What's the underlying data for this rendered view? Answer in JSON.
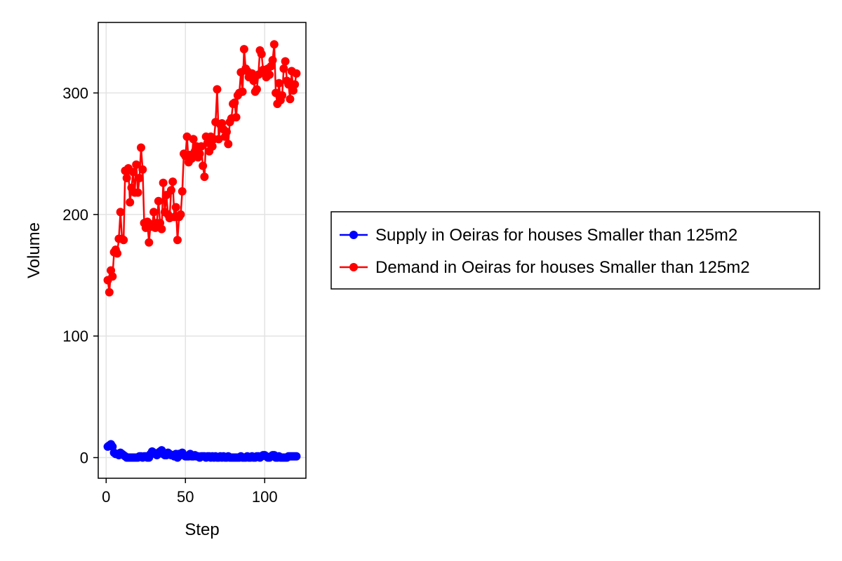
{
  "chart_data": {
    "type": "line",
    "xlabel": "Step",
    "ylabel": "Volume",
    "xlim": [
      -5,
      126
    ],
    "ylim": [
      -17,
      358
    ],
    "x_ticks": [
      0,
      50,
      100
    ],
    "y_ticks": [
      0,
      100,
      200,
      300
    ],
    "grid": true,
    "legend_placement": "right",
    "series": [
      {
        "name": "Supply in Oeiras for houses Smaller than 125m2",
        "color": "#0000ff",
        "marker": "circle",
        "x": [
          1,
          2,
          3,
          4,
          5,
          6,
          7,
          8,
          9,
          10,
          11,
          12,
          13,
          14,
          15,
          16,
          17,
          18,
          19,
          20,
          21,
          22,
          23,
          24,
          25,
          26,
          27,
          28,
          29,
          30,
          31,
          32,
          33,
          34,
          35,
          36,
          37,
          38,
          39,
          40,
          41,
          42,
          43,
          44,
          45,
          46,
          47,
          48,
          49,
          50,
          51,
          52,
          53,
          54,
          55,
          56,
          57,
          58,
          59,
          60,
          61,
          62,
          63,
          64,
          65,
          66,
          67,
          68,
          69,
          70,
          71,
          72,
          73,
          74,
          75,
          76,
          77,
          78,
          79,
          80,
          81,
          82,
          83,
          84,
          85,
          86,
          87,
          88,
          89,
          90,
          91,
          92,
          93,
          94,
          95,
          96,
          97,
          98,
          99,
          100,
          101,
          102,
          103,
          104,
          105,
          106,
          107,
          108,
          109,
          110,
          111,
          112,
          113,
          114,
          115,
          116,
          117,
          118,
          119,
          120
        ],
        "y": [
          9,
          10,
          11,
          9,
          4,
          3,
          3,
          2,
          4,
          3,
          2,
          1,
          0,
          0,
          0,
          0,
          0,
          0,
          0,
          0,
          1,
          1,
          0,
          1,
          1,
          0,
          0,
          3,
          5,
          4,
          3,
          2,
          4,
          5,
          6,
          3,
          2,
          2,
          4,
          3,
          2,
          2,
          1,
          3,
          0,
          3,
          2,
          4,
          2,
          1,
          1,
          1,
          3,
          1,
          1,
          2,
          1,
          1,
          0,
          1,
          1,
          1,
          0,
          1,
          1,
          0,
          1,
          0,
          1,
          0,
          0,
          1,
          0,
          1,
          0,
          0,
          1,
          0,
          0,
          0,
          0,
          0,
          0,
          0,
          1,
          0,
          0,
          0,
          1,
          0,
          0,
          1,
          0,
          0,
          1,
          1,
          0,
          1,
          2,
          2,
          1,
          0,
          0,
          1,
          2,
          2,
          0,
          0,
          1,
          0,
          0,
          0,
          0,
          0,
          1,
          1,
          1,
          1,
          1,
          1
        ]
      },
      {
        "name": "Demand in Oeiras for houses Smaller than 125m2",
        "color": "#ff0000",
        "marker": "circle",
        "x": [
          1,
          2,
          3,
          4,
          5,
          6,
          7,
          8,
          9,
          10,
          11,
          12,
          13,
          14,
          15,
          16,
          17,
          18,
          19,
          20,
          21,
          22,
          23,
          24,
          25,
          26,
          27,
          28,
          29,
          30,
          31,
          32,
          33,
          34,
          35,
          36,
          37,
          38,
          39,
          40,
          41,
          42,
          43,
          44,
          45,
          46,
          47,
          48,
          49,
          50,
          51,
          52,
          53,
          54,
          55,
          56,
          57,
          58,
          59,
          60,
          61,
          62,
          63,
          64,
          65,
          66,
          67,
          68,
          69,
          70,
          71,
          72,
          73,
          74,
          75,
          76,
          77,
          78,
          79,
          80,
          81,
          82,
          83,
          84,
          85,
          86,
          87,
          88,
          89,
          90,
          91,
          92,
          93,
          94,
          95,
          96,
          97,
          98,
          99,
          100,
          101,
          102,
          103,
          104,
          105,
          106,
          107,
          108,
          109,
          110,
          111,
          112,
          113,
          114,
          115,
          116,
          117,
          118,
          119,
          120
        ],
        "y": [
          146,
          136,
          154,
          149,
          169,
          171,
          168,
          180,
          202,
          180,
          179,
          236,
          230,
          238,
          210,
          222,
          235,
          218,
          241,
          218,
          230,
          255,
          237,
          193,
          189,
          194,
          177,
          192,
          190,
          202,
          189,
          193,
          211,
          193,
          188,
          226,
          202,
          216,
          200,
          197,
          220,
          227,
          198,
          206,
          179,
          198,
          200,
          219,
          250,
          248,
          264,
          243,
          249,
          246,
          262,
          252,
          256,
          247,
          250,
          256,
          240,
          231,
          264,
          259,
          252,
          264,
          256,
          262,
          276,
          303,
          262,
          274,
          275,
          270,
          264,
          268,
          258,
          276,
          279,
          291,
          292,
          280,
          298,
          300,
          317,
          301,
          336,
          320,
          318,
          313,
          316,
          316,
          310,
          301,
          303,
          315,
          335,
          332,
          319,
          316,
          313,
          320,
          315,
          322,
          327,
          340,
          300,
          291,
          308,
          294,
          298,
          320,
          326,
          310,
          307,
          295,
          318,
          302,
          307,
          316
        ]
      }
    ]
  }
}
